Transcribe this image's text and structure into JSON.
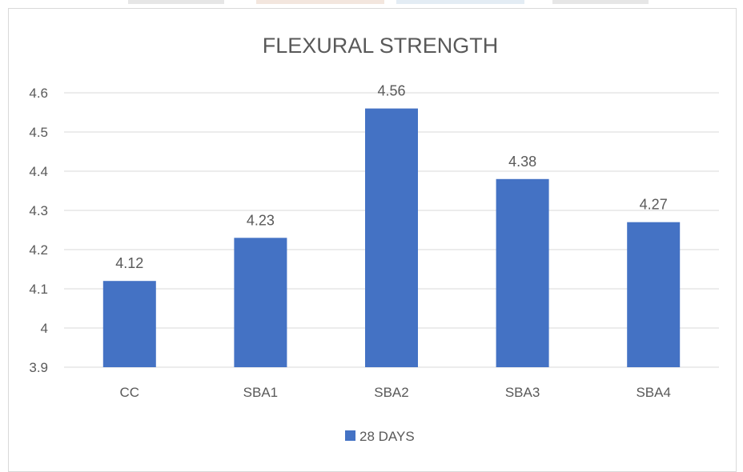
{
  "chart_data": {
    "type": "bar",
    "title": "FLEXURAL STRENGTH",
    "xlabel": "",
    "ylabel": "",
    "categories": [
      "CC",
      "SBA1",
      "SBA2",
      "SBA3",
      "SBA4"
    ],
    "series": [
      {
        "name": "28 DAYS",
        "values": [
          4.12,
          4.23,
          4.56,
          4.38,
          4.27
        ],
        "color": "#4472c4"
      }
    ],
    "data_labels": [
      "4.12",
      "4.23",
      "4.56",
      "4.38",
      "4.27"
    ],
    "ylim": [
      3.9,
      4.6
    ],
    "yticks": [
      3.9,
      4,
      4.1,
      4.2,
      4.3,
      4.4,
      4.5,
      4.6
    ],
    "ytick_labels": [
      "3.9",
      "4",
      "4.1",
      "4.2",
      "4.3",
      "4.4",
      "4.5",
      "4.6"
    ],
    "grid": true,
    "legend_position": "bottom"
  },
  "colors": {
    "bar": "#4472c4",
    "grid": "#d9d9d9",
    "text": "#595959",
    "title": "#595959"
  }
}
